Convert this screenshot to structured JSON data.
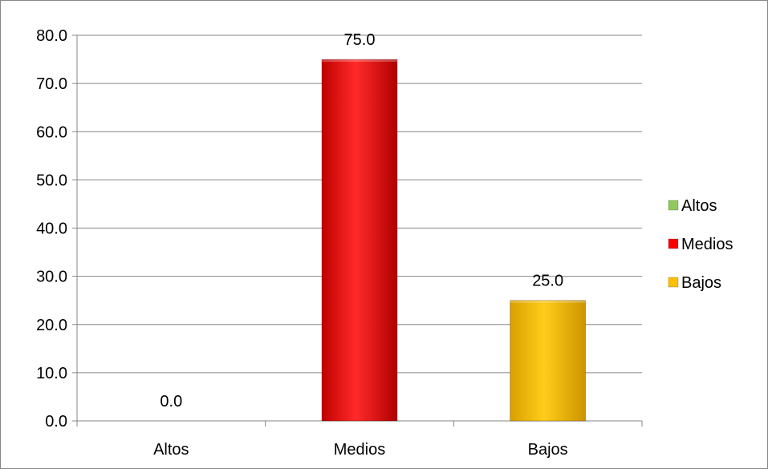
{
  "chart_data": {
    "type": "bar",
    "title": "",
    "xlabel": "",
    "ylabel": "",
    "categories": [
      "Altos",
      "Medios",
      "Bajos"
    ],
    "values": [
      0.0,
      75.0,
      25.0
    ],
    "data_labels": [
      "0.0",
      "75.0",
      "25.0"
    ],
    "colors": [
      "#8fca5e",
      "#ff0000",
      "#ffc000"
    ],
    "ylim": [
      0,
      80
    ],
    "yticks": [
      0,
      10,
      20,
      30,
      40,
      50,
      60,
      70,
      80
    ],
    "ytick_labels": [
      "0.0",
      "10.0",
      "20.0",
      "30.0",
      "40.0",
      "50.0",
      "60.0",
      "70.0",
      "80.0"
    ],
    "grid": "horizontal",
    "legend": {
      "position": "right",
      "entries": [
        {
          "label": "Altos",
          "color": "#8fca5e"
        },
        {
          "label": "Medios",
          "color": "#ff0000"
        },
        {
          "label": "Bajos",
          "color": "#ffc000"
        }
      ]
    }
  }
}
